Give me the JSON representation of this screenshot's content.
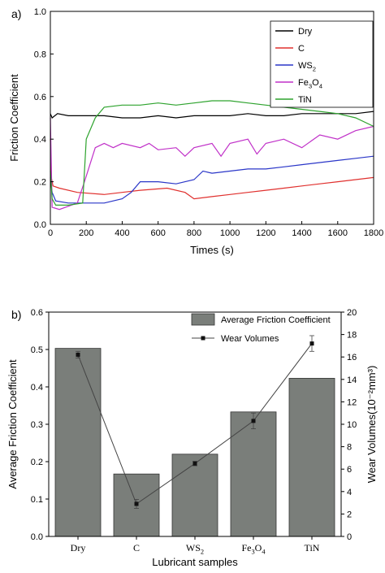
{
  "chart_data": [
    {
      "panel_label": "a)",
      "type": "line",
      "xlabel": "Times (s)",
      "ylabel": "Friction Coefficient",
      "xlim": [
        0,
        1800
      ],
      "ylim": [
        0,
        1.0
      ],
      "xticks": [
        "0",
        "200",
        "400",
        "600",
        "800",
        "1000",
        "1200",
        "1400",
        "1600",
        "1800"
      ],
      "yticks": [
        "0.0",
        "0.2",
        "0.4",
        "0.6",
        "0.8",
        "1.0"
      ],
      "legend_position": "top-right",
      "series": [
        {
          "name": "Dry",
          "color": "#000000",
          "x": [
            0,
            10,
            40,
            100,
            200,
            300,
            400,
            500,
            600,
            700,
            800,
            900,
            1000,
            1100,
            1200,
            1300,
            1400,
            1500,
            1600,
            1700,
            1800
          ],
          "y": [
            0.52,
            0.5,
            0.52,
            0.51,
            0.51,
            0.51,
            0.5,
            0.5,
            0.51,
            0.5,
            0.51,
            0.51,
            0.51,
            0.52,
            0.51,
            0.51,
            0.52,
            0.52,
            0.52,
            0.52,
            0.53
          ]
        },
        {
          "name": "C",
          "color": "#e0302e",
          "x": [
            0,
            5,
            15,
            50,
            150,
            300,
            400,
            500,
            650,
            750,
            800,
            900,
            1000,
            1100,
            1200,
            1300,
            1400,
            1500,
            1600,
            1700,
            1800
          ],
          "y": [
            0.4,
            0.22,
            0.18,
            0.17,
            0.15,
            0.14,
            0.15,
            0.16,
            0.17,
            0.15,
            0.12,
            0.13,
            0.14,
            0.15,
            0.16,
            0.17,
            0.18,
            0.19,
            0.2,
            0.21,
            0.22
          ]
        },
        {
          "name": "WS2",
          "color": "#2a36c8",
          "x": [
            0,
            10,
            30,
            100,
            200,
            300,
            400,
            450,
            500,
            600,
            700,
            800,
            850,
            900,
            1000,
            1100,
            1200,
            1300,
            1400,
            1500,
            1600,
            1700,
            1800
          ],
          "y": [
            0.22,
            0.15,
            0.11,
            0.1,
            0.1,
            0.1,
            0.12,
            0.15,
            0.2,
            0.2,
            0.19,
            0.21,
            0.25,
            0.24,
            0.25,
            0.26,
            0.26,
            0.27,
            0.28,
            0.29,
            0.3,
            0.31,
            0.32
          ]
        },
        {
          "name": "Fe3O4",
          "color": "#c030c8",
          "x": [
            0,
            10,
            50,
            150,
            190,
            250,
            300,
            350,
            400,
            500,
            550,
            600,
            700,
            750,
            800,
            900,
            950,
            1000,
            1100,
            1150,
            1200,
            1300,
            1400,
            1500,
            1600,
            1700,
            1800
          ],
          "y": [
            0.5,
            0.08,
            0.07,
            0.1,
            0.2,
            0.36,
            0.38,
            0.36,
            0.38,
            0.36,
            0.38,
            0.35,
            0.36,
            0.32,
            0.36,
            0.38,
            0.32,
            0.38,
            0.4,
            0.33,
            0.38,
            0.4,
            0.36,
            0.42,
            0.4,
            0.44,
            0.46
          ]
        },
        {
          "name": "TiN",
          "color": "#2ea32e",
          "x": [
            0,
            10,
            30,
            100,
            180,
            200,
            250,
            300,
            400,
            500,
            600,
            700,
            800,
            900,
            1000,
            1100,
            1200,
            1300,
            1400,
            1500,
            1600,
            1700,
            1800
          ],
          "y": [
            0.25,
            0.12,
            0.09,
            0.09,
            0.1,
            0.4,
            0.5,
            0.55,
            0.56,
            0.56,
            0.57,
            0.56,
            0.57,
            0.58,
            0.58,
            0.57,
            0.56,
            0.55,
            0.54,
            0.53,
            0.52,
            0.5,
            0.46
          ]
        }
      ]
    },
    {
      "panel_label": "b)",
      "type": "bar",
      "xlabel": "Lubricant samples",
      "ylabel": "Average Friction Coefficient",
      "ylabel_right": "Wear Volumes(10⁻²mm³)",
      "categories": [
        "Dry",
        "C",
        "WS2",
        "Fe3O4",
        "TiN"
      ],
      "ylim": [
        0,
        0.6
      ],
      "ylim_right": [
        0,
        20
      ],
      "yticks": [
        "0.0",
        "0.1",
        "0.2",
        "0.3",
        "0.4",
        "0.5",
        "0.6"
      ],
      "yticks_right": [
        "0",
        "2",
        "4",
        "6",
        "8",
        "10",
        "12",
        "14",
        "16",
        "18",
        "20"
      ],
      "legend_position": "top-right",
      "series": [
        {
          "name": "Average Friction Coefficient",
          "color": "#7a7e7a",
          "values": [
            0.503,
            0.167,
            0.22,
            0.333,
            0.423
          ]
        },
        {
          "name": "Wear Volumes",
          "color": "#444444",
          "type": "line",
          "axis": "right",
          "values": [
            16.2,
            2.9,
            6.5,
            10.3,
            17.2
          ],
          "errors": [
            0.3,
            0.4,
            0.2,
            0.7,
            0.7
          ]
        }
      ]
    }
  ]
}
